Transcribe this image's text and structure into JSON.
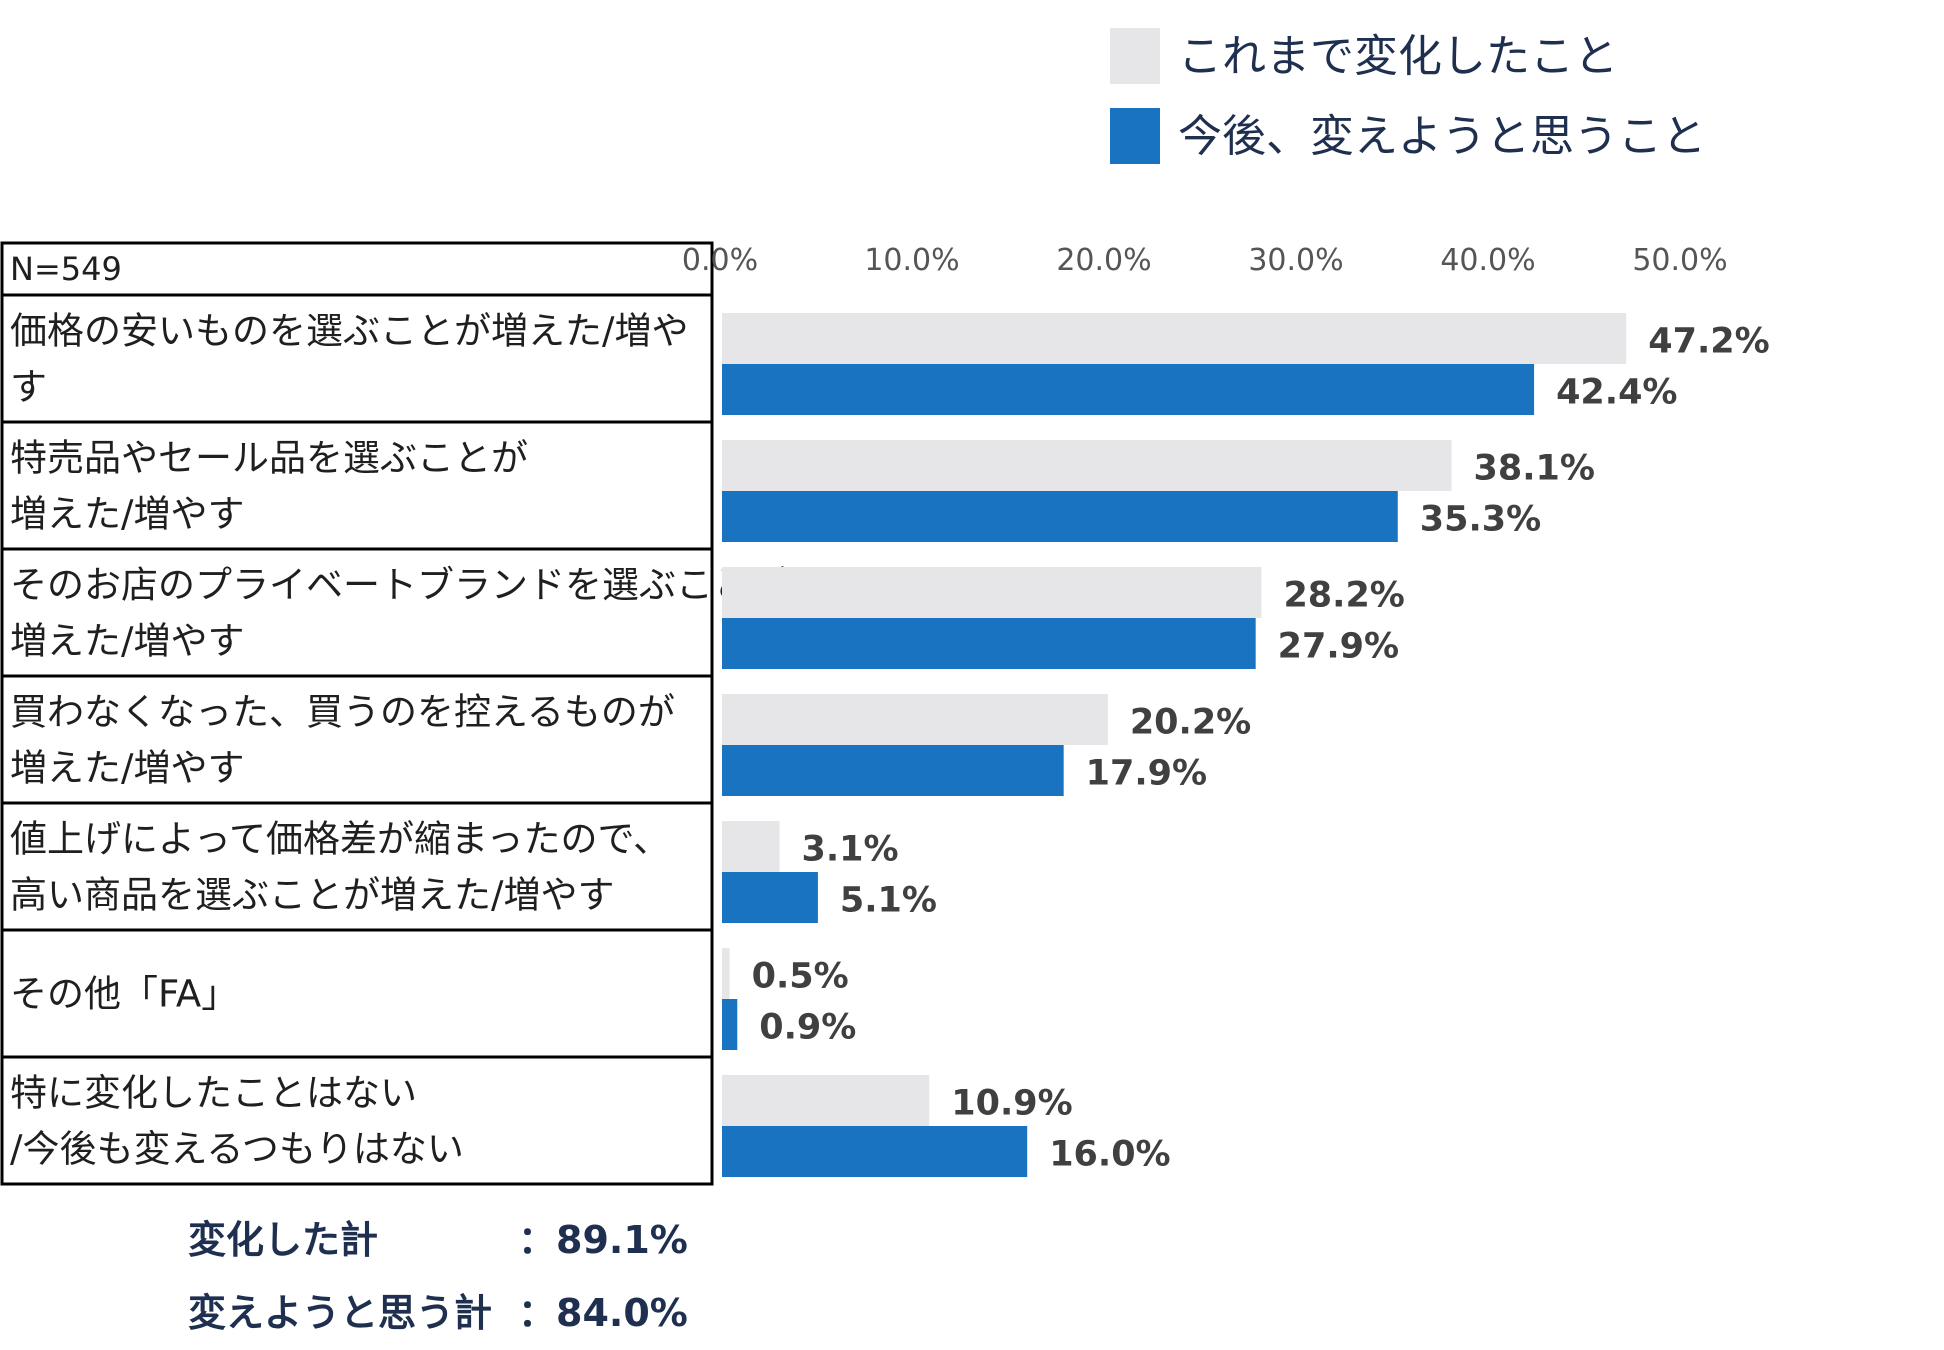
{
  "colors": {
    "past": "#e6e6e8",
    "future": "#1a73c0",
    "border": "#000000"
  },
  "chart_data": {
    "type": "bar",
    "orientation": "horizontal",
    "n_label": "N=549",
    "categories": [
      [
        "価格の安いものを選ぶことが増えた/増や",
        "す"
      ],
      [
        "特売品やセール品を選ぶことが",
        "増えた/増やす"
      ],
      [
        "そのお店のプライベートブランドを選ぶことが",
        "増えた/増やす"
      ],
      [
        "買わなくなった、買うのを控えるものが",
        "増えた/増やす"
      ],
      [
        "値上げによって価格差が縮まったので、",
        "高い商品を選ぶことが増えた/増やす"
      ],
      [
        "その他「FA」"
      ],
      [
        "特に変化したことはない",
        "/今後も変えるつもりはない"
      ]
    ],
    "series": [
      {
        "name": "これまで変化したこと",
        "color": "#e6e6e8",
        "values": [
          47.2,
          38.1,
          28.2,
          20.2,
          3.1,
          0.5,
          10.9
        ],
        "labels": [
          "47.2%",
          "38.1%",
          "28.2%",
          "20.2%",
          "3.1%",
          "0.5%",
          "10.9%"
        ]
      },
      {
        "name": "今後、変えようと思うこと",
        "color": "#1a73c0",
        "values": [
          42.4,
          35.3,
          27.9,
          17.9,
          5.1,
          0.9,
          16.0
        ],
        "labels": [
          "42.4%",
          "35.3%",
          "27.9%",
          "17.9%",
          "5.1%",
          "0.9%",
          "16.0%"
        ]
      }
    ],
    "xlim": [
      0,
      50
    ],
    "ticks": [
      0,
      10,
      20,
      30,
      40,
      50
    ],
    "tick_labels": [
      "0.0%",
      "10.0%",
      "20.0%",
      "30.0%",
      "40.0%",
      "50.0%"
    ],
    "legend_position": "top-right",
    "totals": [
      {
        "label": "変化した計",
        "value": "：89.1%"
      },
      {
        "label": "変えようと思う計",
        "value": "：84.0%"
      }
    ]
  }
}
